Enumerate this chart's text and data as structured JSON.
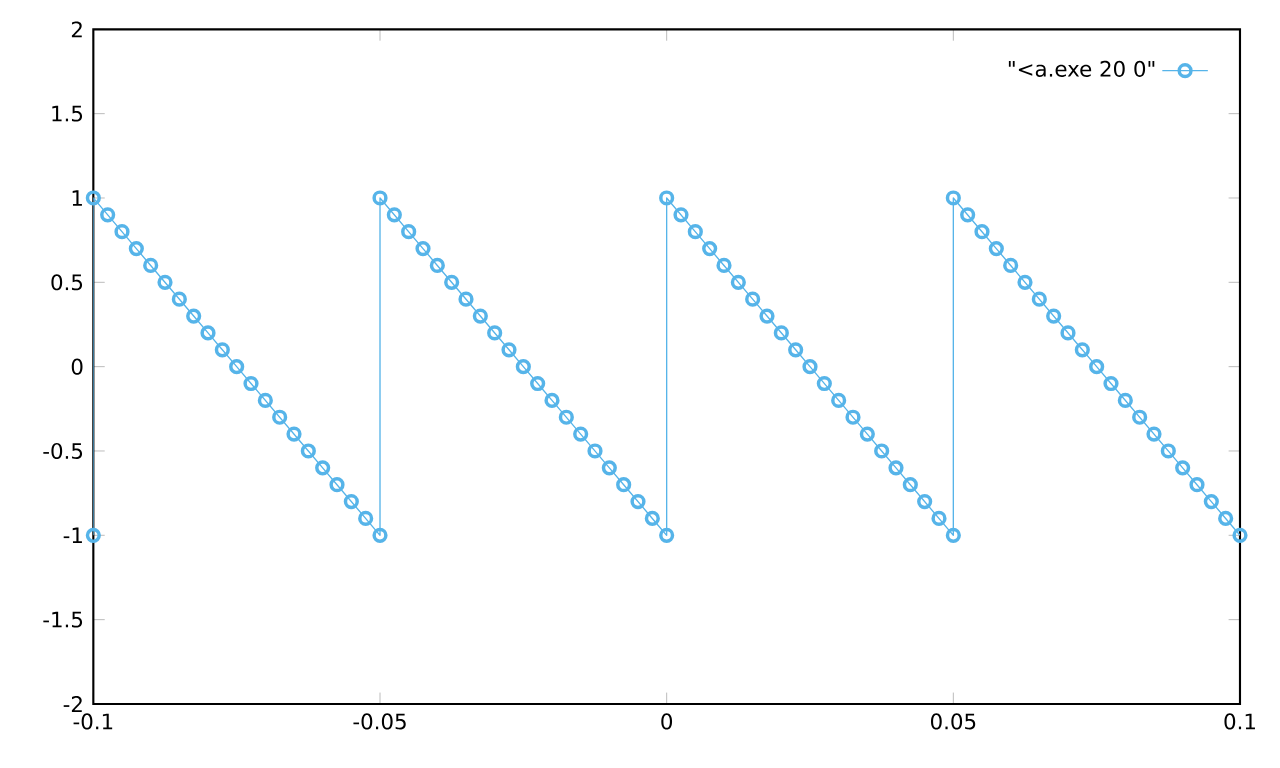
{
  "chart_data": {
    "type": "line",
    "x": [
      -0.1,
      -0.1,
      -0.0975,
      -0.095,
      -0.0925,
      -0.09,
      -0.0875,
      -0.085,
      -0.0825,
      -0.08,
      -0.0775,
      -0.075,
      -0.0725,
      -0.07,
      -0.0675,
      -0.065,
      -0.0625,
      -0.06,
      -0.0575,
      -0.055,
      -0.0525,
      -0.05,
      -0.05,
      -0.0475,
      -0.045,
      -0.0425,
      -0.04,
      -0.0375,
      -0.035,
      -0.0325,
      -0.03,
      -0.0275,
      -0.025,
      -0.0225,
      -0.02,
      -0.0175,
      -0.015,
      -0.0125,
      -0.01,
      -0.0075,
      -0.005,
      -0.0025,
      0,
      0,
      0.0025,
      0.005,
      0.0075,
      0.01,
      0.0125,
      0.015,
      0.0175,
      0.02,
      0.0225,
      0.025,
      0.0275,
      0.03,
      0.0325,
      0.035,
      0.0375,
      0.04,
      0.0425,
      0.045,
      0.0475,
      0.05,
      0.05,
      0.0525,
      0.055,
      0.0575,
      0.06,
      0.0625,
      0.065,
      0.0675,
      0.07,
      0.0725,
      0.075,
      0.0775,
      0.08,
      0.0825,
      0.085,
      0.0875,
      0.09,
      0.0925,
      0.095,
      0.0975,
      0.1
    ],
    "series": [
      {
        "name": "\"<a.exe 20 0\"",
        "color": "#56b4e9",
        "values": [
          -1,
          1,
          0.9,
          0.8,
          0.7,
          0.6,
          0.5,
          0.4,
          0.3,
          0.2,
          0.1,
          0,
          -0.1,
          -0.2,
          -0.3,
          -0.4,
          -0.5,
          -0.6,
          -0.7,
          -0.8,
          -0.9,
          -1,
          1,
          0.9,
          0.8,
          0.7,
          0.6,
          0.5,
          0.4,
          0.3,
          0.2,
          0.1,
          0,
          -0.1,
          -0.2,
          -0.3,
          -0.4,
          -0.5,
          -0.6,
          -0.7,
          -0.8,
          -0.9,
          -1,
          1,
          0.9,
          0.8,
          0.7,
          0.6,
          0.5,
          0.4,
          0.3,
          0.2,
          0.1,
          0,
          -0.1,
          -0.2,
          -0.3,
          -0.4,
          -0.5,
          -0.6,
          -0.7,
          -0.8,
          -0.9,
          -1,
          1,
          0.9,
          0.8,
          0.7,
          0.6,
          0.5,
          0.4,
          0.3,
          0.2,
          0.1,
          0,
          -0.1,
          -0.2,
          -0.3,
          -0.4,
          -0.5,
          -0.6,
          -0.7,
          -0.8,
          -0.9,
          -1
        ]
      }
    ],
    "xlim": [
      -0.1,
      0.1
    ],
    "ylim": [
      -2,
      2
    ],
    "xticks": [
      -0.1,
      -0.05,
      0,
      0.05,
      0.1
    ],
    "yticks": [
      -2,
      -1.5,
      -1,
      -0.5,
      0,
      0.5,
      1,
      1.5,
      2
    ],
    "marker": "circle",
    "legend": "top right",
    "grid": false
  }
}
